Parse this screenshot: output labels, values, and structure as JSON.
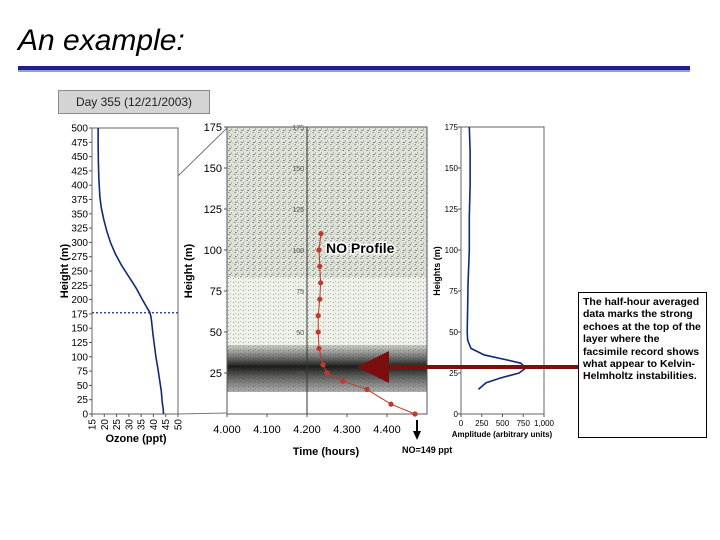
{
  "slide": {
    "title": "An example:"
  },
  "day_label": "Day 355 (12/21/2003)",
  "annotation": "The half-hour averaged data marks the strong echoes at the top of the layer where the facsimile record shows what appear to Kelvin-Helmholtz instabilities.",
  "colors": {
    "title_rule": "#1f1f8f",
    "ozone_line": "#102a7a",
    "no_line": "#c0392b",
    "arrow": "#7b0f0f"
  },
  "chart_data": [
    {
      "type": "line",
      "xlabel": "Ozone (ppt)",
      "ylabel": "Height (m)",
      "xlim": [
        15,
        50
      ],
      "ylim": [
        0,
        500
      ],
      "xticks": [
        "15",
        "20",
        "25",
        "30",
        "35",
        "40",
        "45",
        "50"
      ],
      "yticks": [
        "0",
        "25",
        "50",
        "75",
        "100",
        "125",
        "150",
        "175",
        "200",
        "225",
        "250",
        "275",
        "300",
        "325",
        "350",
        "375",
        "400",
        "425",
        "450",
        "475",
        "500"
      ],
      "reference_line_height": 177,
      "x": [
        17.5,
        17.5,
        17.6,
        17.8,
        18.2,
        18.8,
        19.8,
        21.0,
        22.5,
        24.5,
        27.0,
        30.0,
        33.0,
        35.5,
        37.5,
        38.5,
        39.0,
        39.3,
        39.8,
        40.4,
        41.0,
        41.8,
        42.5,
        43.2,
        43.6,
        44.0,
        44.1
      ],
      "y": [
        500,
        470,
        440,
        410,
        380,
        360,
        340,
        320,
        300,
        280,
        260,
        240,
        220,
        200,
        185,
        178,
        170,
        160,
        140,
        120,
        100,
        80,
        60,
        40,
        20,
        8,
        0
      ]
    },
    {
      "type": "heatmap",
      "xlabel": "Time (hours)",
      "ylabel": "Height (m)",
      "xlim": [
        4.0,
        4.5
      ],
      "ylim": [
        0,
        175
      ],
      "xticks": [
        "4.000",
        "4.100",
        "4.200",
        "4.300",
        "4.400"
      ],
      "yticks": [
        "25",
        "50",
        "75",
        "100",
        "125",
        "150",
        "175"
      ],
      "inner_yticks": [
        "25",
        "50",
        "75",
        "100",
        "125",
        "150",
        "175"
      ],
      "vertical_marker_time": 4.2,
      "no_profile": {
        "label": "NO Profile",
        "marker_label": "NO=149 ppt",
        "points": [
          [
            4.235,
            110
          ],
          [
            4.23,
            100
          ],
          [
            4.232,
            90
          ],
          [
            4.234,
            80
          ],
          [
            4.232,
            70
          ],
          [
            4.228,
            60
          ],
          [
            4.228,
            50
          ],
          [
            4.23,
            40
          ],
          [
            4.24,
            30
          ],
          [
            4.25,
            25
          ],
          [
            4.29,
            20
          ],
          [
            4.35,
            15
          ],
          [
            4.41,
            6
          ],
          [
            4.47,
            0
          ]
        ]
      }
    },
    {
      "type": "line",
      "xlabel": "Amplitude (arbitrary units)",
      "ylabel": "Heights (m)",
      "xlim": [
        0,
        1000
      ],
      "ylim": [
        0,
        175
      ],
      "xticks": [
        "0",
        "250",
        "500",
        "750",
        "1,000"
      ],
      "yticks": [
        "0",
        "25",
        "50",
        "75",
        "100",
        "125",
        "150",
        "175"
      ],
      "x": [
        100,
        110,
        110,
        100,
        100,
        85,
        80,
        75,
        80,
        120,
        280,
        550,
        720,
        780,
        700,
        480,
        300,
        210
      ],
      "y": [
        175,
        160,
        140,
        120,
        100,
        80,
        65,
        50,
        45,
        40,
        36,
        33,
        31,
        28,
        25,
        22,
        19,
        15
      ]
    }
  ]
}
